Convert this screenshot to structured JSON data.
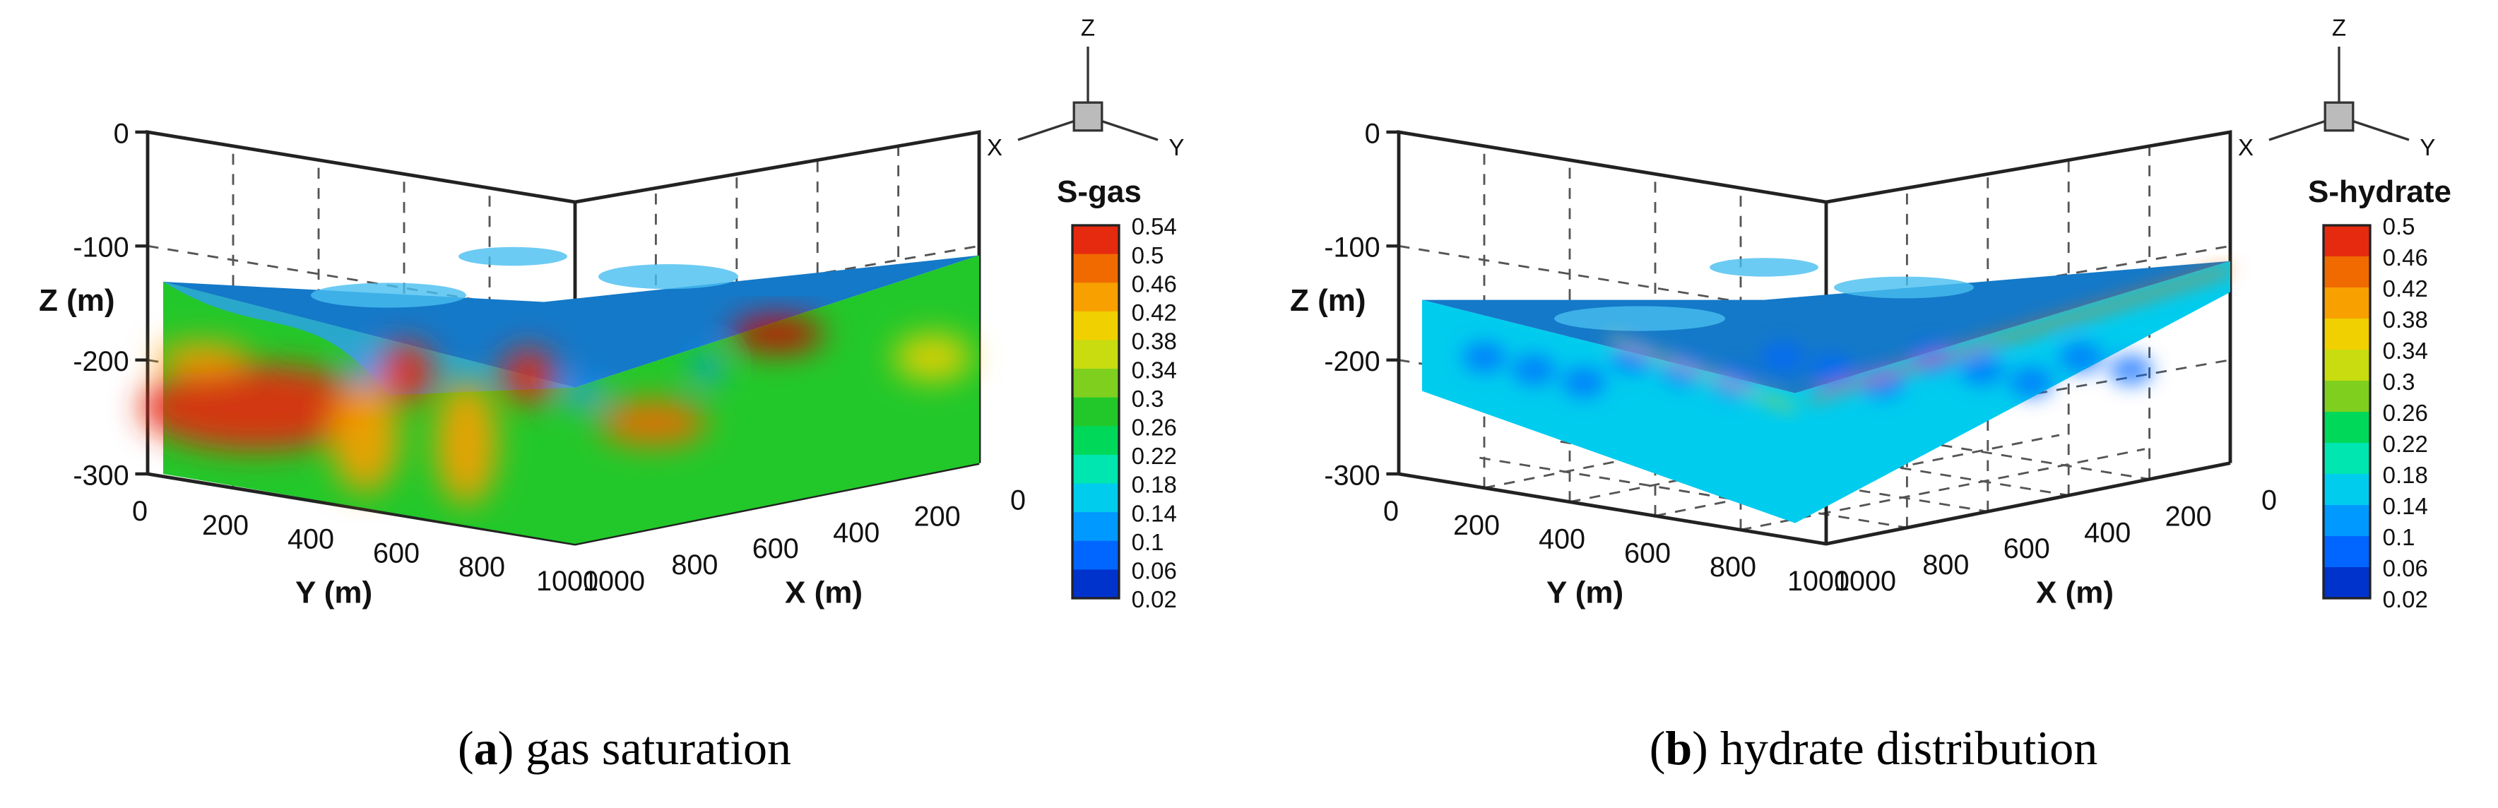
{
  "chart_data": [
    {
      "type": "3d-volume-contour",
      "panel_label": "a",
      "caption": "gas saturation",
      "z_axis": {
        "label": "Z (m)",
        "ticks": [
          "0",
          "-100",
          "-200",
          "-300"
        ],
        "range": [
          -300,
          0
        ]
      },
      "y_axis": {
        "label": "Y (m)",
        "ticks": [
          "0",
          "200",
          "400",
          "600",
          "800",
          "1000"
        ],
        "range": [
          0,
          1000
        ]
      },
      "x_axis": {
        "label": "X (m)",
        "ticks": [
          "1000",
          "800",
          "600",
          "400",
          "200",
          "0"
        ],
        "range": [
          1000,
          0
        ]
      },
      "triad": {
        "z": "Z",
        "x": "X",
        "y": "Y"
      },
      "colorbar": {
        "title": "S-gas",
        "levels": [
          "0.54",
          "0.5",
          "0.46",
          "0.42",
          "0.38",
          "0.34",
          "0.3",
          "0.26",
          "0.22",
          "0.18",
          "0.14",
          "0.1",
          "0.06",
          "0.02"
        ],
        "range": [
          0.02,
          0.54
        ]
      },
      "top_surface_depth_m": -115,
      "bottom_depth_m": -300
    },
    {
      "type": "3d-volume-contour",
      "panel_label": "b",
      "caption": "hydrate distribution",
      "z_axis": {
        "label": "Z (m)",
        "ticks": [
          "0",
          "-100",
          "-200",
          "-300"
        ],
        "range": [
          -300,
          0
        ]
      },
      "y_axis": {
        "label": "Y (m)",
        "ticks": [
          "0",
          "200",
          "400",
          "600",
          "800",
          "1000"
        ],
        "range": [
          0,
          1000
        ]
      },
      "x_axis": {
        "label": "X (m)",
        "ticks": [
          "1000",
          "800",
          "600",
          "400",
          "200",
          "0"
        ],
        "range": [
          1000,
          0
        ]
      },
      "triad": {
        "z": "Z",
        "x": "X",
        "y": "Y"
      },
      "colorbar": {
        "title": "S-hydrate",
        "levels": [
          "0.5",
          "0.46",
          "0.42",
          "0.38",
          "0.34",
          "0.3",
          "0.26",
          "0.22",
          "0.18",
          "0.14",
          "0.1",
          "0.06",
          "0.02"
        ],
        "range": [
          0.02,
          0.5
        ]
      },
      "top_surface_depth_m": -120,
      "layer_bottom_depth_m": -200
    }
  ],
  "palette": [
    "#00008b",
    "#0033cc",
    "#0066ff",
    "#0099ff",
    "#00ccee",
    "#00e6b0",
    "#00d85a",
    "#22c82a",
    "#7fd01e",
    "#c8dc10",
    "#f0d000",
    "#f8a000",
    "#f06a00",
    "#e62a10",
    "#d00000"
  ]
}
